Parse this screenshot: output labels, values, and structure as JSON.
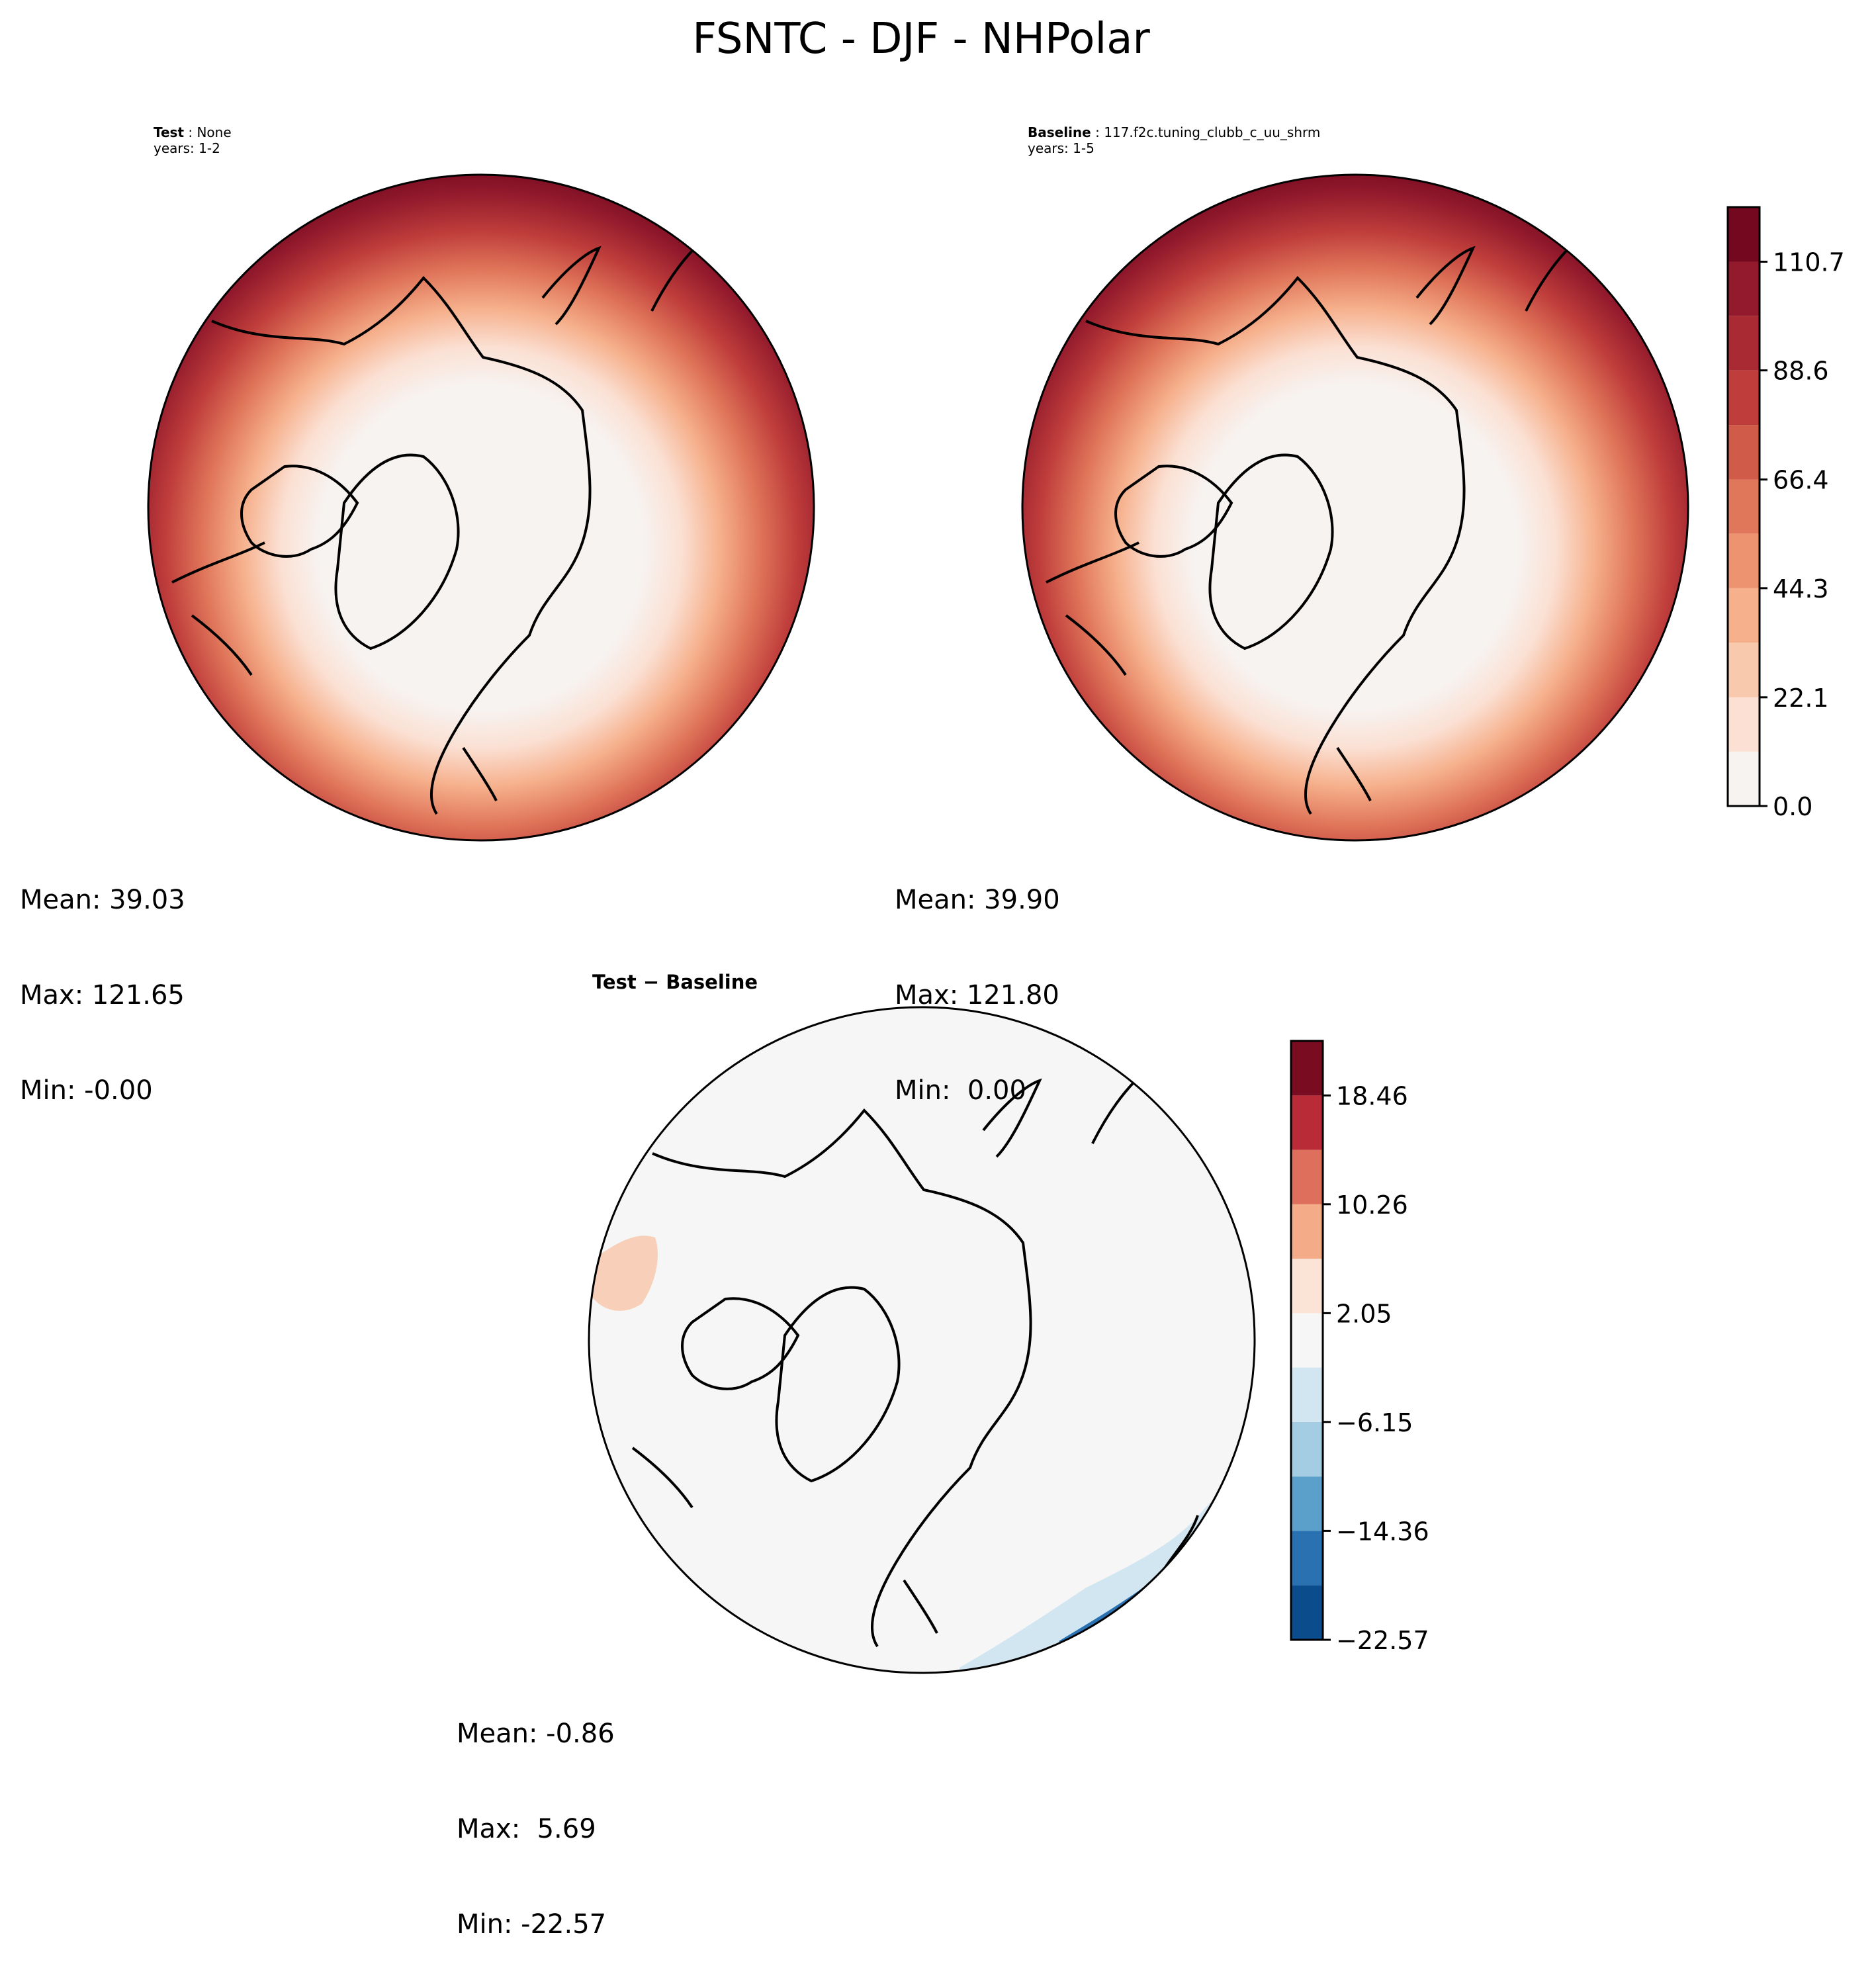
{
  "chart_data": {
    "type": "heatmap",
    "title": "FSNTC - DJF - NHPolar",
    "panels": [
      {
        "id": "test",
        "label": "Test",
        "name": "None",
        "years": "years: 1-2",
        "stats": {
          "mean": "Mean: 39.03",
          "max": "Max: 121.65",
          "min": "Min: -0.00"
        },
        "colormap": "RdBu_r upper half",
        "colorbar": null
      },
      {
        "id": "baseline",
        "label": "Baseline",
        "name": "117.f2c.tuning_clubb_c_uu_shrm",
        "years": "years: 1-5",
        "stats": {
          "mean": "Mean: 39.90",
          "max": "Max: 121.80",
          "min": "Min:  0.00"
        },
        "colorbar": {
          "levels": [
            0.0,
            11.07,
            22.1,
            33.2,
            44.3,
            55.4,
            66.4,
            77.5,
            88.6,
            99.7,
            110.7,
            121.8
          ],
          "tick_labels": [
            "0.0",
            "22.1",
            "44.3",
            "66.4",
            "88.6",
            "110.7"
          ],
          "colors": [
            "#f7f3f1",
            "#fbe0d3",
            "#f9c9ae",
            "#f6b08c",
            "#ee936f",
            "#e0765a",
            "#d15b49",
            "#bf3d3b",
            "#a92a32",
            "#921a2c",
            "#73081f"
          ]
        }
      },
      {
        "id": "diff",
        "label": "Test − Baseline",
        "stats": {
          "mean": "Mean: -0.86",
          "max": "Max:  5.69",
          "min": "Min: -22.57"
        },
        "colorbar": {
          "levels": [
            -22.57,
            -18.46,
            -14.36,
            -10.26,
            -6.15,
            -2.05,
            2.05,
            6.15,
            10.26,
            14.36,
            18.46,
            22.57
          ],
          "tick_labels": [
            "−22.57",
            "−14.36",
            "−6.15",
            "2.05",
            "10.26",
            "18.46"
          ],
          "colors": [
            "#0b4c8c",
            "#2a71b2",
            "#5aa0cb",
            "#a4cde3",
            "#d2e6f1",
            "#f6f6f6",
            "#fbe3d6",
            "#f4ab88",
            "#dd6f5c",
            "#b92c37",
            "#7a0c22"
          ]
        }
      }
    ]
  },
  "colors": {
    "ocean_high": "#73081f",
    "polar_low": "#f7f3f1",
    "diff_neutral": "#f6f6f6",
    "diff_blue_core": "#1f5e9e",
    "diff_blue_light": "#d2e6f1",
    "diff_red_light": "#f8cfb8"
  }
}
